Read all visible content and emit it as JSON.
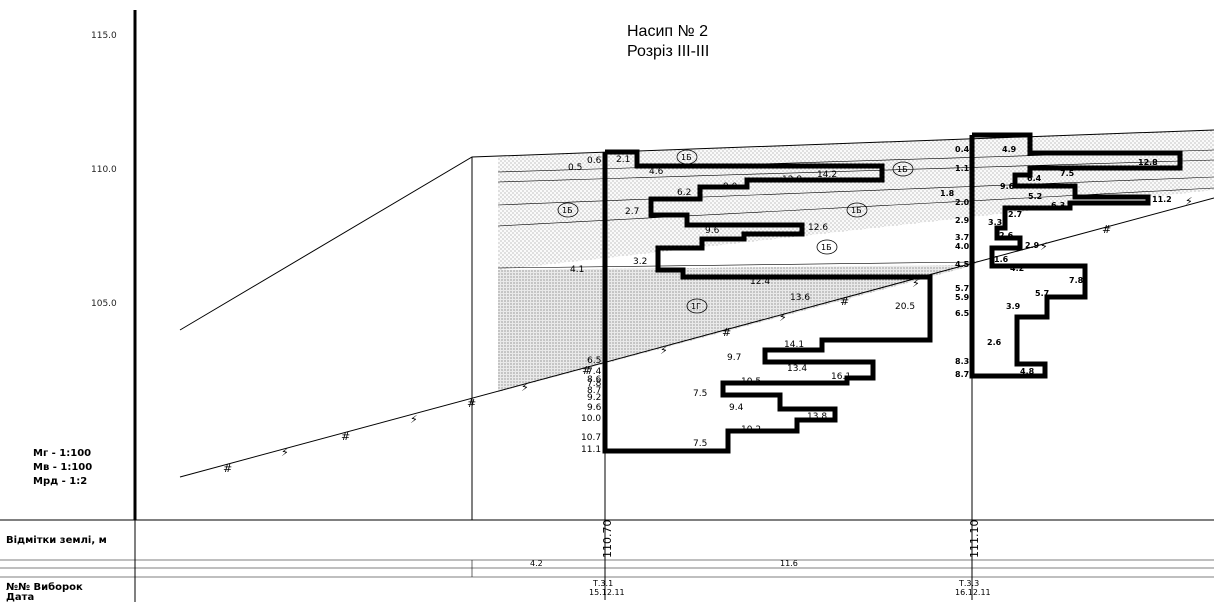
{
  "title": {
    "line1": "Насип № 2",
    "line2": "Розріз ІІІ-ІІІ"
  },
  "elevation_ticks": [
    "115.0",
    "110.0",
    "105.0"
  ],
  "scales": {
    "horizontal": "Мг - 1:100",
    "vertical": "Мв - 1:100",
    "ground": "Мрд - 1:2"
  },
  "table": {
    "row1_label": "Відмітки землі, м",
    "row2_label_line1": "№№ Виборок",
    "row2_label_line2": "Дата",
    "distance_1": "4.2",
    "distance_2": "11.6",
    "borehole_1": {
      "elevation": "110.70",
      "name": "Т.3.1",
      "date": "15.12.11"
    },
    "borehole_2": {
      "elevation": "111.10",
      "name": "Т.3.3",
      "date": "16.12.11"
    }
  },
  "soil_labels": [
    "1Б",
    "1Б",
    "1Б",
    "1Б",
    "1Б",
    "1Г"
  ],
  "profile1": {
    "depths_left": [
      "0.6",
      "0.5",
      "2.1",
      "4.6",
      "2.7",
      "3.2",
      "4.1",
      "6.5",
      "7.4",
      "7.8",
      "8.6",
      "8.7",
      "9.2",
      "9.6",
      "10.0",
      "10.7",
      "11.1"
    ],
    "moisture": [
      "14.2",
      "12.8",
      "9.0",
      "6.2",
      "12.6",
      "9.6",
      "12.4",
      "13.6",
      "20.5",
      "14.1",
      "9.7",
      "13.4",
      "16.1",
      "10.5",
      "7.5",
      "9.4",
      "13.8",
      "10.2",
      "7.5"
    ]
  },
  "profile2": {
    "depths_left": [
      "0.4",
      "1.1",
      "1.8",
      "2.0",
      "2.9",
      "3.7",
      "4.0",
      "4.5",
      "5.7",
      "5.9",
      "6.5",
      "8.3",
      "8.7"
    ],
    "moisture": [
      "4.9",
      "12.8",
      "7.5",
      "9.6",
      "6.4",
      "5.2",
      "6.3",
      "11.2",
      "3.3",
      "2.7",
      "2.6",
      "2.9",
      "4.2",
      "7.8",
      "5.7",
      "3.9",
      "2.6",
      "4.8",
      "1.6"
    ]
  },
  "colors": {
    "line": "#000000",
    "hatch": "#9a9a9a",
    "fill_light": "#f1f1f1",
    "fill_dark": "#dcdcdc"
  }
}
